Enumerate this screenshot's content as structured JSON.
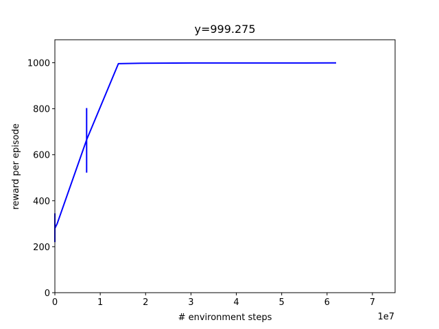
{
  "chart_data": {
    "type": "line",
    "title": "y=999.275",
    "xlabel": "# environment steps",
    "ylabel": "reward per episode",
    "x_offset_label": "1e7",
    "xlim": [
      0,
      7.5
    ],
    "ylim": [
      0,
      1100
    ],
    "xticks": [
      0,
      1,
      2,
      3,
      4,
      5,
      6,
      7
    ],
    "yticks": [
      0,
      200,
      400,
      600,
      800,
      1000
    ],
    "grid": false,
    "line_color": "#0000ff",
    "series": [
      {
        "x": [
          0,
          0.05,
          0.7,
          1.4,
          1.9,
          3.0,
          4.0,
          5.0,
          5.5,
          6.2
        ],
        "y": [
          280,
          300,
          665,
          996,
          998,
          999,
          999,
          999,
          999,
          999.275
        ]
      }
    ],
    "error_bars": [
      {
        "x": 0.7,
        "y": 665,
        "low": 522,
        "high": 803
      },
      {
        "x": 0.0,
        "y": 290,
        "low": 220,
        "high": 345
      }
    ]
  }
}
